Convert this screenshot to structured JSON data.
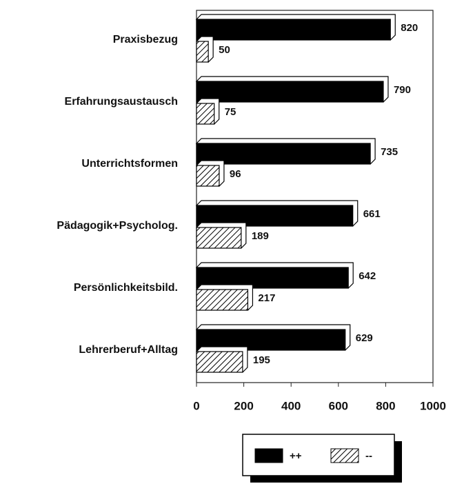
{
  "chart_data": {
    "type": "bar",
    "orientation": "horizontal",
    "categories": [
      "Praxisbezug",
      "Erfahrungsaustausch",
      "Unterrichtsformen",
      "Pädagogik+Psycholog.",
      "Persönlichkeitsbild.",
      "Lehrerberuf+Alltag"
    ],
    "series": [
      {
        "name": "++",
        "color": "#000000",
        "pattern": "solid",
        "values": [
          820,
          790,
          735,
          661,
          642,
          629
        ]
      },
      {
        "name": "--",
        "color": "#000000",
        "pattern": "hatch",
        "values": [
          50,
          75,
          96,
          189,
          217,
          195
        ]
      }
    ],
    "xlim": [
      0,
      1000
    ],
    "xticks": [
      0,
      200,
      400,
      600,
      800,
      1000
    ],
    "grid": false,
    "legend": "bottom"
  }
}
